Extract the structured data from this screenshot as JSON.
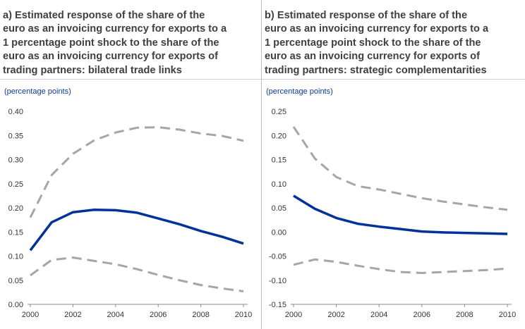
{
  "chart_data": [
    {
      "type": "line",
      "title": "a) Estimated response of the share of the\neuro as an invoicing currency for exports to a\n1 percentage point shock to the share of the\neuro as an invoicing currency for exports of\ntrading partners: bilateral trade links",
      "unit_label": "(percentage points)",
      "x": [
        2000,
        2001,
        2002,
        2003,
        2004,
        2005,
        2006,
        2007,
        2008,
        2009,
        2010
      ],
      "xticks": [
        "2000",
        "2002",
        "2004",
        "2006",
        "2008",
        "2010"
      ],
      "yticks": [
        "0.40",
        "0.35",
        "0.30",
        "0.25",
        "0.20",
        "0.15",
        "0.10",
        "0.05",
        "0.00"
      ],
      "ylim": [
        0,
        0.4
      ],
      "grid": false,
      "series": [
        {
          "role": "estimate",
          "style": "solid",
          "color": "#003299",
          "values": [
            0.112,
            0.17,
            0.191,
            0.196,
            0.195,
            0.19,
            0.178,
            0.166,
            0.152,
            0.14,
            0.126
          ]
        },
        {
          "role": "upper-bound",
          "style": "dashed",
          "color": "#a6a6a6",
          "values": [
            0.18,
            0.268,
            0.312,
            0.34,
            0.356,
            0.366,
            0.367,
            0.362,
            0.354,
            0.349,
            0.339
          ]
        },
        {
          "role": "lower-bound",
          "style": "dashed",
          "color": "#a6a6a6",
          "values": [
            0.06,
            0.092,
            0.097,
            0.09,
            0.083,
            0.073,
            0.061,
            0.05,
            0.04,
            0.033,
            0.027
          ]
        }
      ]
    },
    {
      "type": "line",
      "title": "b) Estimated response of the share of the\neuro as an invoicing currency for exports to a\n1 percentage point shock to the share of the\neuro as an invoicing currency for exports of\ntrading partners: strategic complementarities",
      "unit_label": "(percentage points)",
      "x": [
        2000,
        2001,
        2002,
        2003,
        2004,
        2005,
        2006,
        2007,
        2008,
        2009,
        2010
      ],
      "xticks": [
        "2000",
        "2002",
        "2004",
        "2006",
        "2008",
        "2010"
      ],
      "yticks": [
        "0.25",
        "0.20",
        "0.15",
        "0.10",
        "0.05",
        "0.00",
        "-0.05",
        "-0.10",
        "-0.15"
      ],
      "ylim": [
        -0.15,
        0.25
      ],
      "grid": false,
      "series": [
        {
          "role": "estimate",
          "style": "solid",
          "color": "#003299",
          "values": [
            0.075,
            0.048,
            0.029,
            0.017,
            0.011,
            0.006,
            0.001,
            -0.001,
            -0.002,
            -0.003,
            -0.004
          ]
        },
        {
          "role": "upper-bound",
          "style": "dashed",
          "color": "#a6a6a6",
          "values": [
            0.218,
            0.152,
            0.114,
            0.095,
            0.088,
            0.079,
            0.07,
            0.063,
            0.057,
            0.051,
            0.046
          ]
        },
        {
          "role": "lower-bound",
          "style": "dashed",
          "color": "#a6a6a6",
          "values": [
            -0.068,
            -0.057,
            -0.062,
            -0.07,
            -0.077,
            -0.083,
            -0.085,
            -0.083,
            -0.081,
            -0.079,
            -0.076
          ]
        }
      ]
    }
  ]
}
